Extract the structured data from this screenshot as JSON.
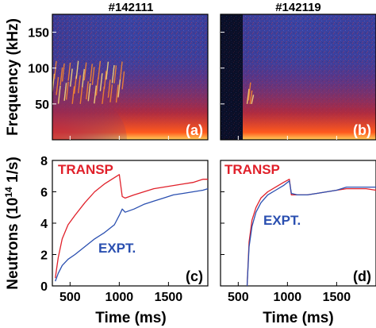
{
  "figure": {
    "shot_left": "#142111",
    "shot_right": "#142119",
    "freq_ylabel": "Frequency (kHz)",
    "neutron_ylabel_main": "Neutrons (10",
    "neutron_ylabel_exp": "14",
    "neutron_ylabel_unit": " 1/s)",
    "xlabel": "Time (ms)",
    "freq_yticks": [
      "150",
      "100",
      "50"
    ],
    "neutron_yticks": [
      "8",
      "6",
      "4",
      "2",
      "0"
    ],
    "xticks": [
      "500",
      "1000",
      "1500"
    ],
    "panel_tags": [
      "(a)",
      "(b)",
      "(c)",
      "(d)"
    ]
  },
  "colors": {
    "transp": "#e0202a",
    "expt": "#2a4fb0",
    "spectrogram_bg": "#3a3f9a",
    "spectrogram_hot": "#ff3a1a",
    "spectrogram_core": "#ffe27a"
  },
  "chart_data": [
    {
      "type": "heatmap",
      "panel": "(a)",
      "title": "#142111",
      "ylabel": "Frequency (kHz)",
      "ylim": [
        0,
        175
      ],
      "xlim": [
        320,
        1900
      ],
      "yticks": [
        50,
        100,
        150
      ],
      "features": {
        "data_start_ms": 320,
        "mode_band_khz": [
          50,
          110
        ],
        "mode_window_ms": [
          320,
          1050
        ]
      }
    },
    {
      "type": "heatmap",
      "panel": "(b)",
      "title": "#142119",
      "ylim": [
        0,
        175
      ],
      "xlim": [
        320,
        1900
      ],
      "features": {
        "data_start_ms": 590,
        "mode_band_khz": [
          50,
          80
        ],
        "mode_window_ms": [
          590,
          650
        ]
      }
    },
    {
      "type": "line",
      "panel": "(c)",
      "xlabel": "Time (ms)",
      "ylabel": "Neutrons (10^14 1/s)",
      "xlim": [
        320,
        1900
      ],
      "ylim": [
        0,
        8
      ],
      "xticks": [
        500,
        1000,
        1500
      ],
      "yticks": [
        0,
        2,
        4,
        6,
        8
      ],
      "series": [
        {
          "name": "TRANSP",
          "x": [
            350,
            380,
            420,
            480,
            550,
            650,
            750,
            850,
            950,
            1000,
            1030,
            1060,
            1150,
            1250,
            1350,
            1450,
            1550,
            1650,
            1750,
            1850,
            1900
          ],
          "y": [
            0.5,
            1.8,
            3.0,
            3.9,
            4.5,
            5.3,
            6.0,
            6.5,
            6.9,
            7.1,
            5.7,
            5.6,
            5.8,
            6.0,
            6.2,
            6.3,
            6.4,
            6.5,
            6.6,
            6.8,
            6.8
          ]
        },
        {
          "name": "EXPT.",
          "x": [
            350,
            380,
            420,
            480,
            550,
            650,
            750,
            850,
            950,
            1000,
            1030,
            1060,
            1150,
            1250,
            1350,
            1450,
            1550,
            1650,
            1750,
            1850,
            1900
          ],
          "y": [
            0.3,
            0.8,
            1.3,
            1.7,
            2.0,
            2.5,
            3.0,
            3.4,
            3.9,
            4.5,
            4.9,
            4.7,
            4.9,
            5.2,
            5.4,
            5.6,
            5.8,
            5.9,
            6.0,
            6.1,
            6.2
          ]
        }
      ]
    },
    {
      "type": "line",
      "panel": "(d)",
      "xlabel": "Time (ms)",
      "xlim": [
        320,
        1900
      ],
      "ylim": [
        0,
        8
      ],
      "xticks": [
        500,
        1000,
        1500
      ],
      "series": [
        {
          "name": "TRANSP",
          "x": [
            590,
            610,
            640,
            680,
            730,
            800,
            880,
            960,
            1020,
            1040,
            1100,
            1200,
            1300,
            1400,
            1500,
            1600,
            1700,
            1800,
            1900
          ],
          "y": [
            0,
            2.8,
            4.2,
            5.0,
            5.6,
            6.0,
            6.3,
            6.6,
            6.8,
            5.8,
            5.8,
            5.8,
            5.9,
            6.0,
            6.1,
            6.2,
            6.2,
            6.2,
            6.1
          ]
        },
        {
          "name": "EXPT.",
          "x": [
            590,
            610,
            640,
            680,
            730,
            800,
            880,
            960,
            1020,
            1040,
            1100,
            1200,
            1300,
            1400,
            1500,
            1600,
            1700,
            1800,
            1900
          ],
          "y": [
            0,
            2.5,
            3.8,
            4.7,
            5.3,
            5.8,
            6.1,
            6.4,
            6.7,
            5.9,
            5.8,
            5.8,
            5.9,
            6.0,
            6.1,
            6.3,
            6.3,
            6.3,
            6.3
          ]
        }
      ]
    }
  ]
}
